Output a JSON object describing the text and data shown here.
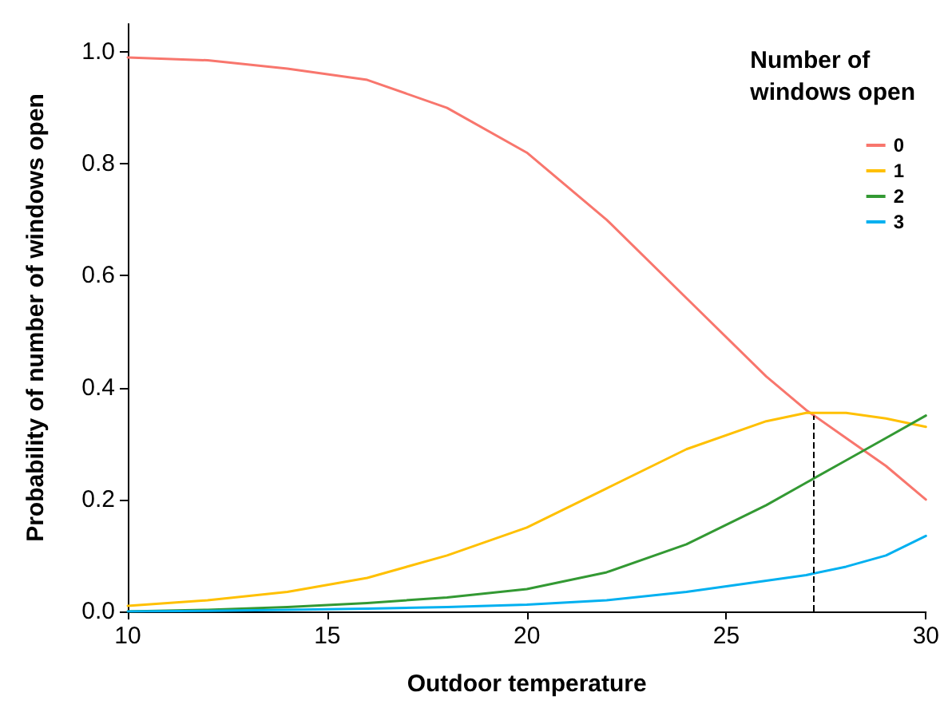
{
  "chart_data": {
    "type": "line",
    "xlabel": "Outdoor temperature",
    "ylabel": "Probability of number of windows open",
    "legend_title": "Number of\nwindows open",
    "x": [
      10,
      12,
      14,
      16,
      18,
      20,
      22,
      24,
      26,
      27,
      28,
      29,
      30
    ],
    "series": [
      {
        "name": "0",
        "color": "#f8766d",
        "values": [
          0.99,
          0.985,
          0.97,
          0.95,
          0.9,
          0.82,
          0.7,
          0.56,
          0.42,
          0.36,
          0.31,
          0.26,
          0.2
        ]
      },
      {
        "name": "1",
        "color": "#ffc000",
        "values": [
          0.01,
          0.02,
          0.035,
          0.06,
          0.1,
          0.15,
          0.22,
          0.29,
          0.34,
          0.355,
          0.355,
          0.345,
          0.33
        ]
      },
      {
        "name": "2",
        "color": "#339933",
        "values": [
          0.0,
          0.003,
          0.008,
          0.015,
          0.025,
          0.04,
          0.07,
          0.12,
          0.19,
          0.23,
          0.27,
          0.31,
          0.35
        ]
      },
      {
        "name": "3",
        "color": "#00b0f0",
        "values": [
          0.0,
          0.001,
          0.003,
          0.005,
          0.008,
          0.012,
          0.02,
          0.035,
          0.055,
          0.065,
          0.08,
          0.1,
          0.135
        ]
      }
    ],
    "xlim": [
      10,
      30
    ],
    "xticks": [
      10,
      15,
      20,
      25,
      30
    ],
    "ylim": [
      0,
      1.05
    ],
    "yticks": [
      {
        "value": 0,
        "label": "0.0"
      },
      {
        "value": 0.2,
        "label": "0.2"
      },
      {
        "value": 0.4,
        "label": "0.4"
      },
      {
        "value": 0.6,
        "label": "0.6"
      },
      {
        "value": 0.8,
        "label": "0.8"
      },
      {
        "value": 1,
        "label": "1.0"
      }
    ],
    "ref_lines": [
      {
        "axis": "x",
        "value": 27.2,
        "color": "#000000",
        "line_style": "dashed"
      }
    ],
    "grid": false,
    "legend": "top right",
    "marker": "none",
    "line_style": "solid"
  }
}
